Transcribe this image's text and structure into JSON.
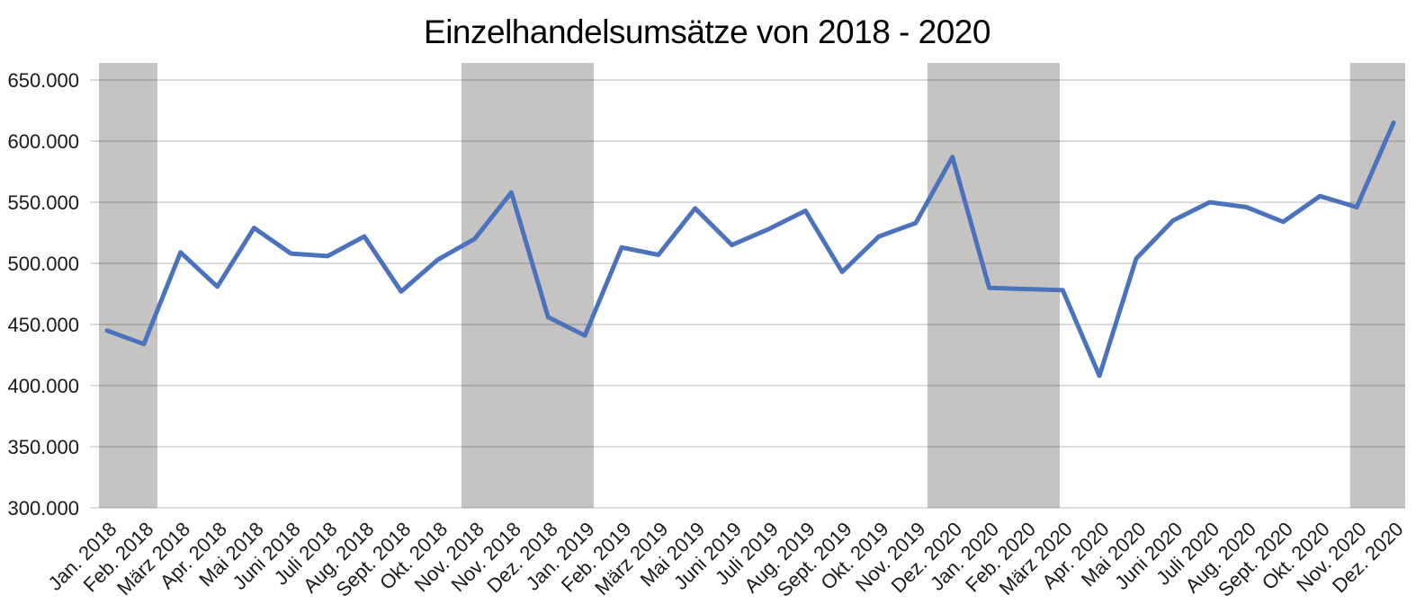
{
  "chart_data": {
    "type": "line",
    "title": "Einzelhandelsumsätze von 2018 - 2020",
    "xlabel": "",
    "ylabel": "",
    "grid": true,
    "legend": "none",
    "categories": [
      "Jan. 2018",
      "Feb. 2018",
      "März 2018",
      "Apr. 2018",
      "Mai 2018",
      "Juni 2018",
      "Juli 2018",
      "Aug. 2018",
      "Sept. 2018",
      "Okt. 2018",
      "Nov. 2018",
      "Nov. 2018",
      "Dez. 2018",
      "Jan. 2019",
      "Feb. 2019",
      "März 2019",
      "Mai 2019",
      "Juni 2019",
      "Juli 2019",
      "Aug. 2019",
      "Sept. 2019",
      "Okt. 2019",
      "Nov. 2019",
      "Dez. 2020",
      "Jan. 2020",
      "Feb. 2020",
      "März 2020",
      "Apr. 2020",
      "Mai 2020",
      "Juni 2020",
      "Juli 2020",
      "Aug. 2020",
      "Sept. 2020",
      "Okt. 2020",
      "Nov. 2020",
      "Dez. 2020"
    ],
    "values": [
      445000,
      434000,
      509000,
      481000,
      529000,
      508000,
      506000,
      522000,
      477000,
      503000,
      520000,
      558000,
      456000,
      441000,
      513000,
      507000,
      545000,
      515000,
      528000,
      543000,
      493000,
      522000,
      533000,
      587000,
      480000,
      479000,
      478000,
      408000,
      504000,
      535000,
      550000,
      546000,
      534000,
      555000,
      546000,
      615000
    ],
    "ylim": [
      300000,
      664000
    ],
    "ytick_step": 50000,
    "yticks": [
      {
        "value": 650000,
        "label": "650.000"
      },
      {
        "value": 600000,
        "label": "600.000"
      },
      {
        "value": 550000,
        "label": "550.000"
      },
      {
        "value": 500000,
        "label": "500.000"
      },
      {
        "value": 450000,
        "label": "450.000"
      },
      {
        "value": 400000,
        "label": "400.000"
      },
      {
        "value": 350000,
        "label": "350.000"
      },
      {
        "value": 300000,
        "label": "300.000"
      }
    ],
    "highlight_bands": [
      {
        "from_index": -0.22,
        "to_index": 1.37
      },
      {
        "from_index": 9.64,
        "to_index": 13.24
      },
      {
        "from_index": 22.32,
        "to_index": 25.92
      },
      {
        "from_index": 33.82,
        "to_index": 35.32
      }
    ],
    "colors": {
      "line": "#4b73bb",
      "highlight_band": "#c5c4c3",
      "gridline": "#d4d4d4",
      "axis_text": "#1a1a1a",
      "title_text": "#000000",
      "background": "#ffffff"
    }
  }
}
